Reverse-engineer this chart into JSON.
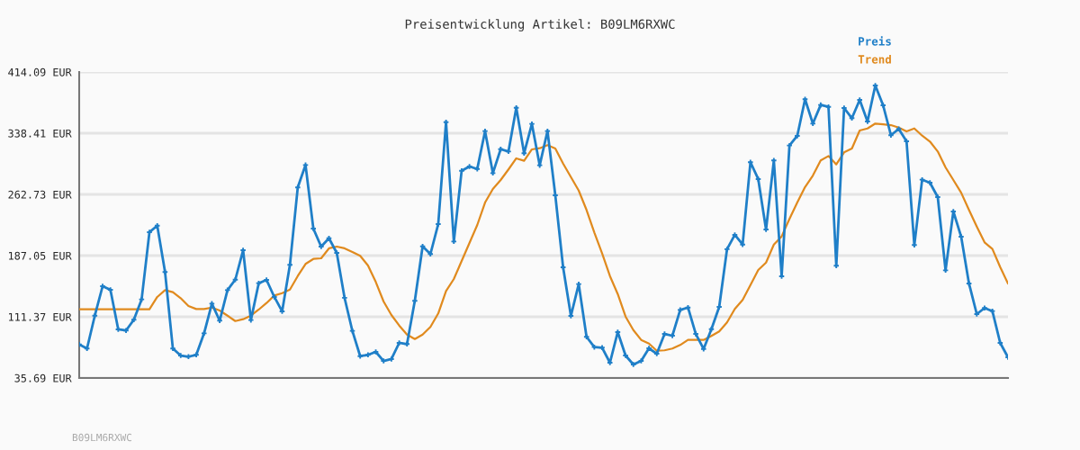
{
  "chart_data": {
    "type": "line",
    "title": "Preisentwicklung Artikel: B09LM6RXWC",
    "categories": [
      null,
      null,
      null,
      null,
      null,
      null,
      null,
      null,
      null,
      null,
      null,
      null,
      null,
      null,
      null,
      null,
      null,
      null,
      null,
      null,
      null,
      null,
      null,
      null,
      null,
      null,
      null,
      null,
      null,
      null,
      null,
      null,
      null,
      null,
      null,
      null,
      null,
      null,
      null,
      null,
      null,
      null,
      null,
      null,
      null,
      null,
      null,
      null,
      null,
      null,
      null,
      null,
      null,
      null,
      null,
      null,
      null,
      null,
      null,
      null,
      null,
      null,
      null,
      null,
      null,
      null,
      null,
      null,
      null,
      null,
      null,
      null,
      null,
      null,
      null,
      null,
      null,
      null,
      null,
      null,
      null,
      null,
      null,
      null,
      null,
      null,
      null,
      null,
      null,
      null,
      null,
      null,
      null,
      null,
      null,
      null,
      null,
      null,
      null,
      null,
      null,
      null,
      null,
      null,
      null,
      null,
      null,
      null,
      null,
      null,
      null,
      null,
      null,
      null,
      null,
      null,
      null,
      null,
      null,
      null
    ],
    "series": [
      {
        "name": "Preis",
        "color": "#1f7fc8",
        "marker": "cross",
        "values": [
          77.2,
          72.1,
          112.8,
          149.2,
          144.8,
          95.8,
          94.4,
          107.7,
          132.9,
          216.0,
          224.1,
          166.7,
          72.1,
          63.5,
          62.1,
          64.3,
          91.0,
          127.7,
          106.6,
          144.4,
          157.3,
          193.7,
          107.3,
          152.9,
          157.0,
          135.9,
          118.1,
          175.6,
          271.3,
          299.1,
          220.4,
          198.2,
          208.5,
          190.4,
          134.8,
          93.9,
          62.7,
          64.3,
          68.0,
          56.8,
          59.1,
          79.1,
          77.7,
          131.1,
          198.5,
          189.0,
          226.0,
          352.1,
          204.5,
          292.0,
          297.2,
          294.2,
          341.0,
          289.1,
          318.7,
          315.8,
          369.9,
          313.6,
          349.9,
          298.7,
          341.0,
          261.6,
          172.6,
          112.5,
          151.8,
          86.6,
          73.9,
          73.2,
          54.6,
          92.5,
          63.5,
          52.4,
          56.8,
          72.4,
          65.7,
          90.2,
          88.0,
          119.9,
          122.8,
          90.2,
          71.6,
          96.1,
          123.6,
          194.9,
          212.7,
          200.7,
          302.5,
          281.7,
          219.3,
          304.7,
          161.5,
          323.2,
          335.1,
          380.4,
          350.3,
          373.3,
          371.0,
          174.5,
          369.6,
          357.0,
          379.6,
          352.9,
          397.4,
          372.9,
          335.9,
          343.7,
          328.4,
          200.1,
          280.9,
          277.2,
          259.4,
          168.9,
          241.6,
          210.4,
          152.6,
          114.7,
          122.2,
          118.4,
          79.1,
          61.3
        ]
      },
      {
        "name": "Trend",
        "color": "#e08a1e",
        "marker": "none",
        "values": [
          120.6,
          120.6,
          120.6,
          120.6,
          120.6,
          120.6,
          120.6,
          120.6,
          120.6,
          120.6,
          135.9,
          144.4,
          141.8,
          134.4,
          124.7,
          121.0,
          121.0,
          122.8,
          119.2,
          112.8,
          106.1,
          108.4,
          112.8,
          120.3,
          128.4,
          137.7,
          140.6,
          145.1,
          161.8,
          176.7,
          182.9,
          183.7,
          196.0,
          198.2,
          196.0,
          191.5,
          186.7,
          174.8,
          154.4,
          130.3,
          113.6,
          100.6,
          89.4,
          83.9,
          89.4,
          98.8,
          115.5,
          143.3,
          158.1,
          180.4,
          202.6,
          224.9,
          252.7,
          269.4,
          280.5,
          293.6,
          307.3,
          304.3,
          318.4,
          319.8,
          323.6,
          319.5,
          300.9,
          284.2,
          267.5,
          243.5,
          215.6,
          189.6,
          161.8,
          139.5,
          111.7,
          95.0,
          82.8,
          78.3,
          69.4,
          69.9,
          72.1,
          76.5,
          82.8,
          82.8,
          82.8,
          87.7,
          93.2,
          104.4,
          121.1,
          132.2,
          150.7,
          169.2,
          178.5,
          200.7,
          210.8,
          232.4,
          252.7,
          271.9,
          286.1,
          304.7,
          310.2,
          299.8,
          314.7,
          319.5,
          341.7,
          344.3,
          350.3,
          349.5,
          348.4,
          345.4,
          340.6,
          344.3,
          335.4,
          328.1,
          315.8,
          296.1,
          280.5,
          264.8,
          243.5,
          222.9,
          203.4,
          195.2,
          172.9,
          152.5
        ]
      }
    ],
    "ylim": [
      35.69,
      414.09
    ],
    "yticks": [
      {
        "value": 35.69,
        "label": "35.69 EUR"
      },
      {
        "value": 111.37,
        "label": "111.37 EUR"
      },
      {
        "value": 187.05,
        "label": "187.05 EUR"
      },
      {
        "value": 262.73,
        "label": "262.73 EUR"
      },
      {
        "value": 338.41,
        "label": "338.41 EUR"
      },
      {
        "value": 414.09,
        "label": "414.09 EUR"
      }
    ],
    "grid": "y",
    "legend": "top right",
    "tick_labels": "y",
    "annotations": [
      "B09LM6RXWC"
    ]
  }
}
